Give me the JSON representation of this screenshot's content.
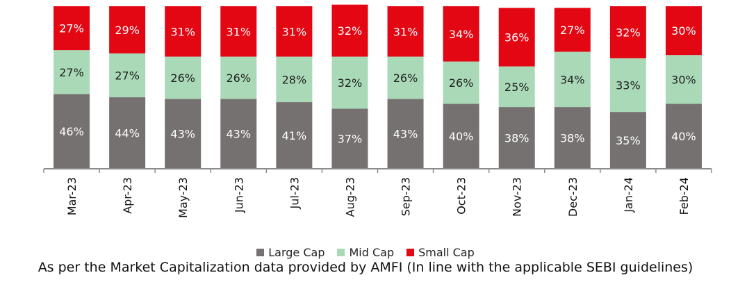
{
  "chart_data": {
    "type": "bar",
    "stacked": true,
    "percent_stacked": true,
    "categories": [
      "Mar-23",
      "Apr-23",
      "May-23",
      "Jun-23",
      "Jul-23",
      "Aug-23",
      "Sep-23",
      "Oct-23",
      "Nov-23",
      "Dec-23",
      "Jan-24",
      "Feb-24"
    ],
    "series": [
      {
        "name": "Large Cap",
        "color": "#767171",
        "values": [
          46,
          44,
          43,
          43,
          41,
          37,
          43,
          40,
          38,
          38,
          35,
          40
        ]
      },
      {
        "name": "Mid Cap",
        "color": "#A9D9B7",
        "values": [
          27,
          27,
          26,
          26,
          28,
          32,
          26,
          26,
          25,
          34,
          33,
          30
        ]
      },
      {
        "name": "Small Cap",
        "color": "#E30613",
        "values": [
          27,
          29,
          31,
          31,
          31,
          32,
          31,
          34,
          36,
          27,
          32,
          30
        ]
      }
    ],
    "ylim": [
      0,
      100
    ],
    "grid": false,
    "legend_position": "bottom"
  },
  "footnote": "As per the Market Capitalization data provided by AMFI (In line with the applicable SEBI guidelines)"
}
